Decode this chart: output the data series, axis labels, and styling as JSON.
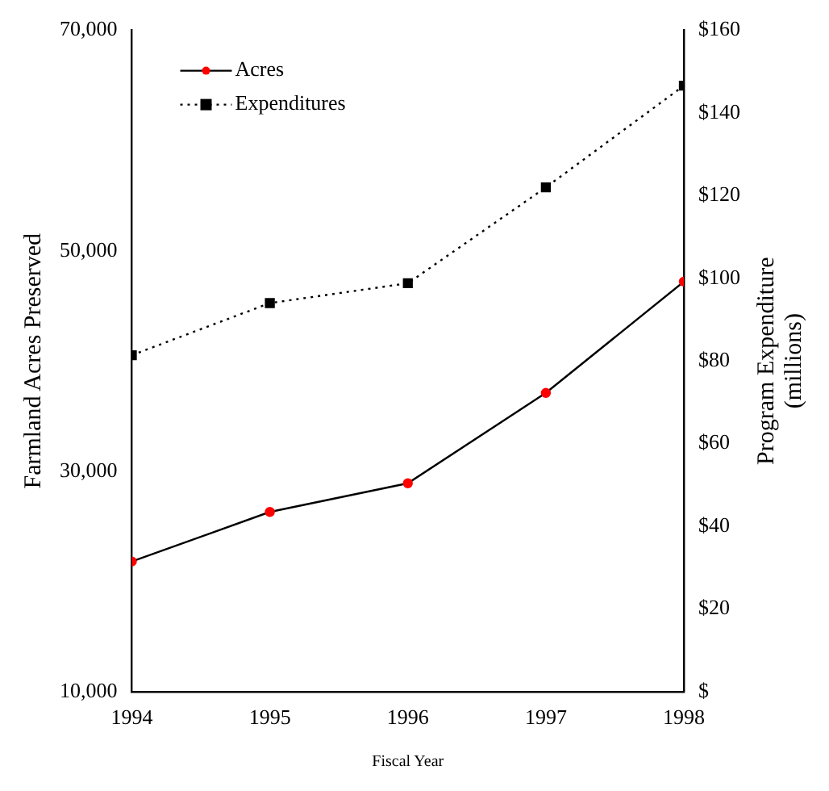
{
  "chart_data": {
    "type": "line",
    "xlabel": "Fiscal Year",
    "ylabel": "Farmland Acres Preserved",
    "y2label": "Program Expenditure\n(millions)",
    "x": [
      1994,
      1995,
      1996,
      1997,
      1998
    ],
    "xlim": [
      1994,
      1998
    ],
    "xticks": [
      1994,
      1995,
      1996,
      1997,
      1998
    ],
    "ylim": [
      10000,
      70000
    ],
    "yticks": [
      {
        "value": 10000,
        "label": "10,000"
      },
      {
        "value": 30000,
        "label": "30,000"
      },
      {
        "value": 50000,
        "label": "50,000"
      },
      {
        "value": 70000,
        "label": "70,000"
      }
    ],
    "y2lim": [
      0,
      160
    ],
    "y2ticks": [
      {
        "value": 0,
        "label": "$"
      },
      {
        "value": 20,
        "label": "$20"
      },
      {
        "value": 40,
        "label": "$40"
      },
      {
        "value": 60,
        "label": "$60"
      },
      {
        "value": 80,
        "label": "$80"
      },
      {
        "value": 100,
        "label": "$100"
      },
      {
        "value": 120,
        "label": "$120"
      },
      {
        "value": 140,
        "label": "$140"
      },
      {
        "value": 160,
        "label": "$160"
      }
    ],
    "series": [
      {
        "name": "Acres",
        "color": "#ff0000",
        "marker": "circle",
        "line_style": "solid",
        "values": [
          21800,
          26300,
          28900,
          37100,
          47200
        ]
      },
      {
        "name": "Expenditures",
        "color": "#000000",
        "marker": "square",
        "line_style": "dotted",
        "axis": "y2",
        "values": [
          81.4,
          94.0,
          98.8,
          122,
          146.6
        ]
      }
    ],
    "legend": "top left",
    "grid": false
  }
}
